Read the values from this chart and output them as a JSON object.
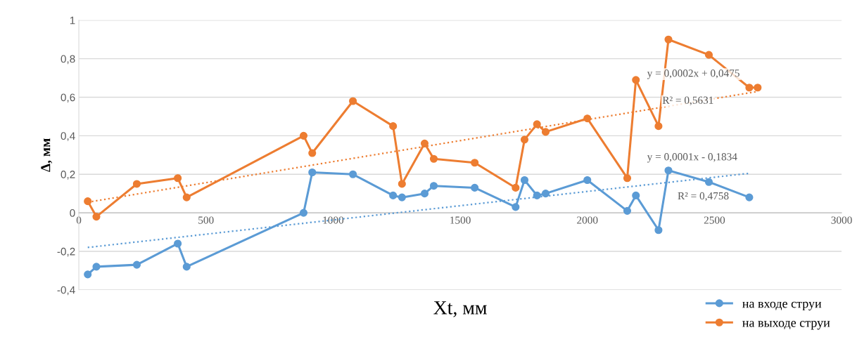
{
  "chart_data": {
    "type": "line",
    "xlabel": "Xt, мм",
    "ylabel": "Δ, мм",
    "xlim": [
      0,
      3000
    ],
    "xticks": [
      0,
      500,
      1000,
      1500,
      2000,
      2500,
      3000
    ],
    "ylim": [
      -0.4,
      1
    ],
    "yticks": [
      {
        "value": -0.4,
        "label": "-0,4"
      },
      {
        "value": -0.2,
        "label": "-0,2"
      },
      0,
      {
        "value": 0.2,
        "label": "0,2"
      },
      {
        "value": 0.4,
        "label": "0,4"
      },
      {
        "value": 0.6,
        "label": "0,6"
      },
      {
        "value": 0.8,
        "label": "0,8"
      },
      1
    ],
    "grid": "y",
    "legend": "bottom right",
    "marker": "circle",
    "line_style": "solid",
    "series": [
      {
        "name": "на входе струи",
        "color": "#5b9bd5",
        "x": [
          35,
          69,
          228,
          389,
          424,
          884,
          918,
          1078,
          1236,
          1271,
          1360,
          1396,
          1557,
          1718,
          1753,
          1802,
          1836,
          2000,
          2157,
          2191,
          2280,
          2319,
          2478,
          2637
        ],
        "values": [
          -0.32,
          -0.28,
          -0.27,
          -0.16,
          -0.28,
          0.0,
          0.21,
          0.2,
          0.09,
          0.08,
          0.1,
          0.14,
          0.13,
          0.03,
          0.17,
          0.09,
          0.1,
          0.17,
          0.01,
          0.09,
          -0.09,
          0.22,
          0.16,
          0.08
        ]
      },
      {
        "name": "на выходе струи",
        "color": "#ed7d31",
        "x": [
          35,
          69,
          228,
          389,
          424,
          884,
          918,
          1078,
          1236,
          1271,
          1360,
          1396,
          1557,
          1718,
          1753,
          1802,
          1836,
          2000,
          2157,
          2191,
          2280,
          2319,
          2478,
          2637,
          2670
        ],
        "values": [
          0.06,
          -0.02,
          0.15,
          0.18,
          0.08,
          0.4,
          0.31,
          0.58,
          0.45,
          0.15,
          0.36,
          0.28,
          0.26,
          0.13,
          0.38,
          0.46,
          0.42,
          0.49,
          0.18,
          0.69,
          0.45,
          0.9,
          0.82,
          0.65,
          0.65
        ]
      },
      {
        "color": "#5b9bd5",
        "marker": "none",
        "line_style": "dotted",
        "x": [
          35,
          2637
        ],
        "values": [
          -0.18,
          0.205
        ]
      },
      {
        "color": "#ed7d31",
        "marker": "none",
        "line_style": "dotted",
        "x": [
          35,
          2670
        ],
        "values": [
          0.055,
          0.63
        ]
      }
    ],
    "annotations": [
      "y = 0,0002x + 0,0475",
      "R² = 0,5631",
      "y = 0,0001x - 0,1834",
      "R² = 0,4758"
    ]
  }
}
